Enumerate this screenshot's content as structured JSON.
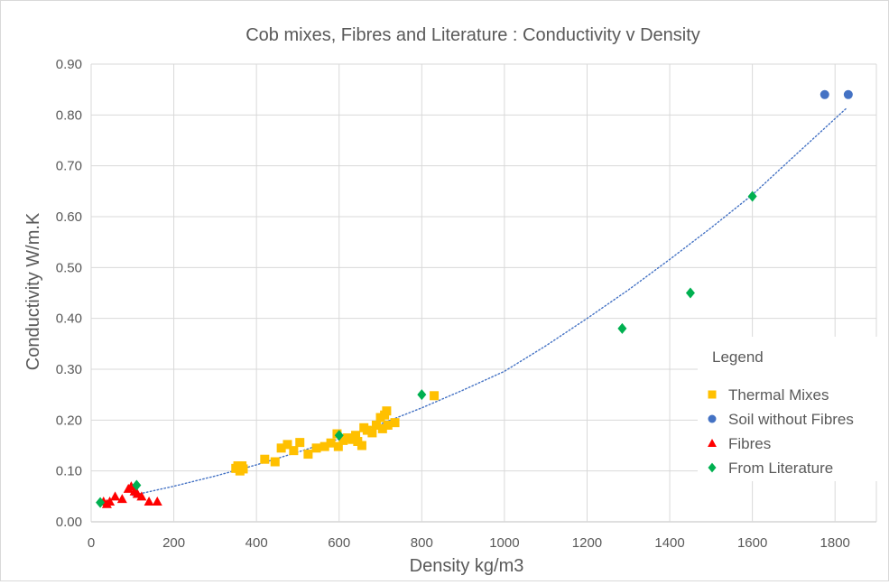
{
  "chart_data": {
    "type": "scatter",
    "title": "Cob mixes, Fibres and Literature : Conductivity v Density",
    "xlabel": "Density kg/m3",
    "ylabel": "Conductivity W/m.K",
    "xlim": [
      0,
      1900
    ],
    "ylim": [
      0,
      0.9
    ],
    "xticks": [
      "0",
      "200",
      "400",
      "600",
      "800",
      "1000",
      "1200",
      "1400",
      "1600",
      "1800"
    ],
    "yticks": [
      "0.00",
      "0.10",
      "0.20",
      "0.30",
      "0.40",
      "0.50",
      "0.60",
      "0.70",
      "0.80",
      "0.90"
    ],
    "grid": "vertical and horizontal",
    "legend": {
      "title": "Legend",
      "placement": "right"
    },
    "trendline": {
      "style": "dotted",
      "color": "#4472c4",
      "x": [
        100,
        200,
        300,
        400,
        500,
        600,
        700,
        800,
        900,
        1000,
        1100,
        1200,
        1300,
        1400,
        1500,
        1600,
        1700,
        1830
      ],
      "y": [
        0.052,
        0.07,
        0.09,
        0.112,
        0.137,
        0.163,
        0.192,
        0.224,
        0.259,
        0.296,
        0.346,
        0.4,
        0.456,
        0.516,
        0.578,
        0.643,
        0.718,
        0.815
      ]
    },
    "series": [
      {
        "name": "Thermal Mixes",
        "marker": "square",
        "color": "#ffc000",
        "points": [
          [
            350,
            0.105
          ],
          [
            355,
            0.11
          ],
          [
            360,
            0.1
          ],
          [
            365,
            0.11
          ],
          [
            368,
            0.104
          ],
          [
            420,
            0.123
          ],
          [
            445,
            0.118
          ],
          [
            460,
            0.145
          ],
          [
            475,
            0.152
          ],
          [
            490,
            0.14
          ],
          [
            505,
            0.156
          ],
          [
            525,
            0.133
          ],
          [
            545,
            0.145
          ],
          [
            565,
            0.148
          ],
          [
            580,
            0.155
          ],
          [
            595,
            0.173
          ],
          [
            598,
            0.148
          ],
          [
            610,
            0.16
          ],
          [
            620,
            0.165
          ],
          [
            632,
            0.162
          ],
          [
            640,
            0.17
          ],
          [
            645,
            0.158
          ],
          [
            655,
            0.15
          ],
          [
            660,
            0.185
          ],
          [
            668,
            0.18
          ],
          [
            680,
            0.175
          ],
          [
            690,
            0.19
          ],
          [
            700,
            0.205
          ],
          [
            705,
            0.183
          ],
          [
            710,
            0.21
          ],
          [
            715,
            0.218
          ],
          [
            718,
            0.19
          ],
          [
            735,
            0.195
          ],
          [
            830,
            0.248
          ]
        ]
      },
      {
        "name": "Soil without Fibres",
        "marker": "circle",
        "color": "#4472c4",
        "points": [
          [
            1775,
            0.84
          ],
          [
            1832,
            0.84
          ]
        ]
      },
      {
        "name": "Fibres",
        "marker": "triangle",
        "color": "#ff0000",
        "points": [
          [
            30,
            0.04
          ],
          [
            38,
            0.035
          ],
          [
            45,
            0.04
          ],
          [
            58,
            0.05
          ],
          [
            75,
            0.045
          ],
          [
            90,
            0.065
          ],
          [
            97,
            0.07
          ],
          [
            105,
            0.06
          ],
          [
            112,
            0.055
          ],
          [
            122,
            0.05
          ],
          [
            140,
            0.04
          ],
          [
            160,
            0.04
          ]
        ]
      },
      {
        "name": "From Literature",
        "marker": "diamond",
        "color": "#00b050",
        "points": [
          [
            22,
            0.038
          ],
          [
            110,
            0.072
          ],
          [
            600,
            0.17
          ],
          [
            800,
            0.25
          ],
          [
            1285,
            0.38
          ],
          [
            1450,
            0.45
          ],
          [
            1600,
            0.64
          ]
        ]
      }
    ]
  }
}
